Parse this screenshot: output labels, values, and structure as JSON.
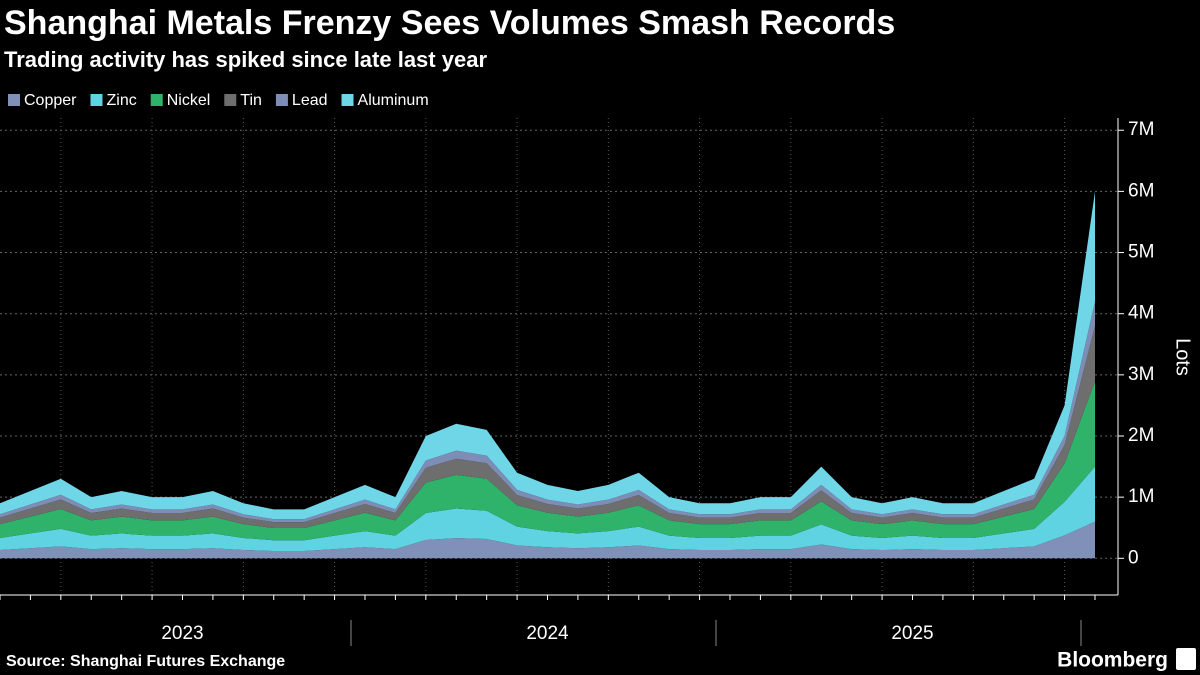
{
  "chart_data": {
    "type": "stacked-area",
    "title": "Shanghai Metals Frenzy Sees Volumes Smash Records",
    "subtitle": "Trading activity has spiked since late last year",
    "y_label": "Lots",
    "source": "Source: Shanghai Futures Exchange",
    "brand": "Bloomberg",
    "categories": [
      null,
      null,
      null,
      null,
      null,
      null,
      "2023",
      null,
      null,
      null,
      null,
      null,
      null,
      null,
      null,
      null,
      null,
      null,
      "2024",
      null,
      null,
      null,
      null,
      null,
      null,
      null,
      null,
      null,
      null,
      null,
      "2025",
      null,
      null,
      null,
      null,
      null,
      null
    ],
    "series": [
      {
        "name": "Copper",
        "color": "#8090b8",
        "values": [
          135000,
          165000,
          195000,
          150000,
          165000,
          150000,
          150000,
          165000,
          135000,
          120000,
          120000,
          150000,
          180000,
          150000,
          300000,
          330000,
          315000,
          210000,
          180000,
          165000,
          180000,
          210000,
          150000,
          135000,
          135000,
          150000,
          150000,
          225000,
          150000,
          135000,
          150000,
          135000,
          135000,
          165000,
          195000,
          375000,
          600000
        ]
      },
      {
        "name": "Zinc",
        "color": "#5fd3e2",
        "values": [
          198000,
          242000,
          286000,
          220000,
          242000,
          220000,
          220000,
          242000,
          198000,
          176000,
          176000,
          220000,
          264000,
          220000,
          440000,
          484000,
          462000,
          308000,
          264000,
          242000,
          264000,
          308000,
          220000,
          198000,
          198000,
          220000,
          220000,
          330000,
          220000,
          198000,
          220000,
          198000,
          198000,
          242000,
          286000,
          550000,
          900000
        ]
      },
      {
        "name": "Nickel",
        "color": "#2fb36a",
        "values": [
          225000,
          275000,
          325000,
          250000,
          275000,
          250000,
          250000,
          275000,
          225000,
          200000,
          200000,
          250000,
          300000,
          250000,
          500000,
          550000,
          525000,
          350000,
          300000,
          275000,
          300000,
          350000,
          250000,
          225000,
          225000,
          250000,
          250000,
          375000,
          250000,
          225000,
          250000,
          225000,
          225000,
          275000,
          325000,
          625000,
          1400000
        ]
      },
      {
        "name": "Tin",
        "color": "#6e6e6e",
        "values": [
          108000,
          132000,
          156000,
          120000,
          132000,
          120000,
          120000,
          132000,
          108000,
          96000,
          96000,
          120000,
          144000,
          120000,
          240000,
          264000,
          252000,
          168000,
          144000,
          132000,
          144000,
          168000,
          120000,
          108000,
          108000,
          120000,
          120000,
          180000,
          120000,
          108000,
          120000,
          108000,
          108000,
          132000,
          156000,
          300000,
          900000
        ]
      },
      {
        "name": "Lead",
        "color": "#7d8db5",
        "values": [
          54000,
          66000,
          78000,
          60000,
          66000,
          60000,
          60000,
          66000,
          54000,
          48000,
          48000,
          60000,
          72000,
          60000,
          120000,
          132000,
          126000,
          84000,
          72000,
          66000,
          72000,
          84000,
          60000,
          54000,
          54000,
          60000,
          60000,
          90000,
          60000,
          54000,
          60000,
          54000,
          54000,
          66000,
          78000,
          150000,
          400000
        ]
      },
      {
        "name": "Aluminum",
        "color": "#6fd6e8",
        "values": [
          180000,
          220000,
          260000,
          200000,
          220000,
          200000,
          200000,
          220000,
          180000,
          160000,
          160000,
          200000,
          240000,
          200000,
          400000,
          440000,
          420000,
          280000,
          240000,
          220000,
          240000,
          280000,
          200000,
          180000,
          180000,
          200000,
          200000,
          300000,
          200000,
          180000,
          200000,
          180000,
          180000,
          220000,
          260000,
          500000,
          1800000
        ]
      }
    ],
    "ylim": [
      -600000,
      7200000
    ],
    "yticks": [
      0,
      {
        "value": 1000000,
        "label": "1M"
      },
      {
        "value": 2000000,
        "label": "2M"
      },
      {
        "value": 3000000,
        "label": "3M"
      },
      {
        "value": 4000000,
        "label": "4M"
      },
      {
        "value": 5000000,
        "label": "5M"
      },
      {
        "value": 6000000,
        "label": "6M"
      },
      {
        "value": 7000000,
        "label": "7M"
      }
    ],
    "grid": true
  }
}
